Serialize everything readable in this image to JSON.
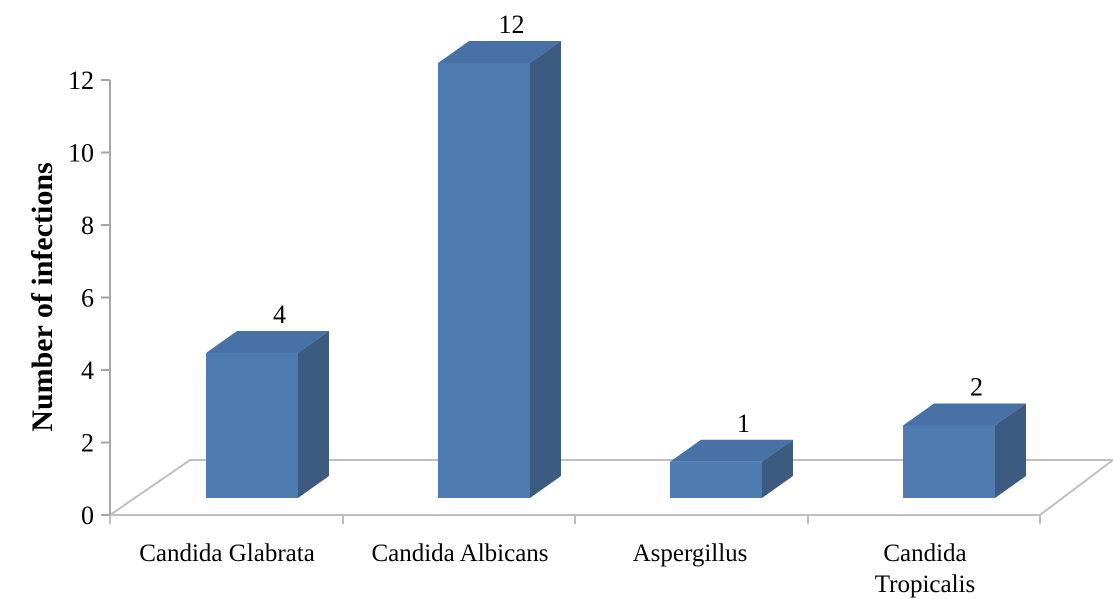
{
  "chart_data": {
    "type": "bar",
    "title": "",
    "xlabel": "",
    "ylabel": "Number of infections",
    "ylim": [
      0,
      12
    ],
    "yticks": [
      "0",
      "2",
      "4",
      "6",
      "8",
      "10",
      "12"
    ],
    "categories": [
      [
        "Candida Glabrata"
      ],
      [
        "Candida Albicans"
      ],
      [
        "Aspergillus"
      ],
      [
        "Candida",
        "Tropicalis"
      ]
    ],
    "values": [
      4,
      12,
      1,
      2
    ],
    "data_labels": [
      "4",
      "12",
      "1",
      "2"
    ],
    "grid": false,
    "legend": "none",
    "three_d": true
  },
  "colors": {
    "bar_front": "#4f7cb0",
    "bar_side": "#3d5a80",
    "bar_top": "#4872a6",
    "axis": "#a6a6a6",
    "floor": "#bfbfbf"
  }
}
